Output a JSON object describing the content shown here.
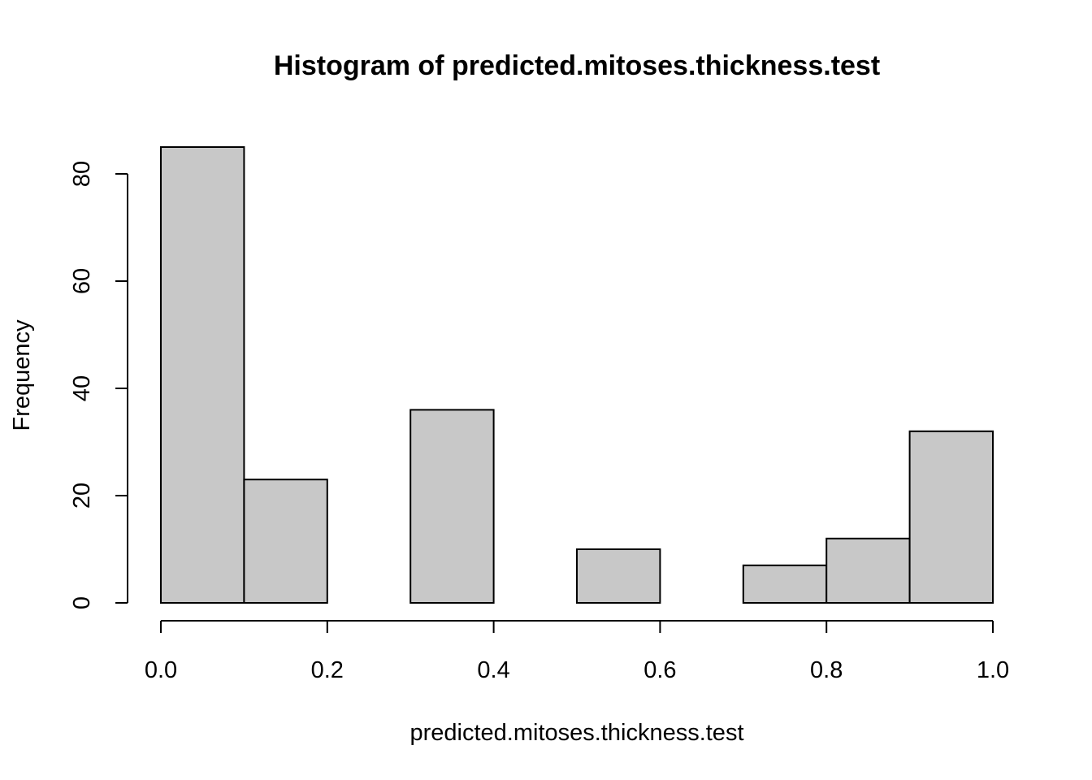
{
  "chart_data": {
    "type": "bar",
    "subtype": "histogram",
    "title": "Histogram of predicted.mitoses.thickness.test",
    "xlabel": "predicted.mitoses.thickness.test",
    "ylabel": "Frequency",
    "bins": [
      {
        "x0": 0.0,
        "x1": 0.1,
        "count": 85
      },
      {
        "x0": 0.1,
        "x1": 0.2,
        "count": 23
      },
      {
        "x0": 0.2,
        "x1": 0.3,
        "count": 0
      },
      {
        "x0": 0.3,
        "x1": 0.4,
        "count": 36
      },
      {
        "x0": 0.4,
        "x1": 0.5,
        "count": 0
      },
      {
        "x0": 0.5,
        "x1": 0.6,
        "count": 10
      },
      {
        "x0": 0.6,
        "x1": 0.7,
        "count": 0
      },
      {
        "x0": 0.7,
        "x1": 0.8,
        "count": 7
      },
      {
        "x0": 0.8,
        "x1": 0.9,
        "count": 12
      },
      {
        "x0": 0.9,
        "x1": 1.0,
        "count": 32
      }
    ],
    "xlim": [
      0.0,
      1.0
    ],
    "ylim": [
      0,
      85
    ],
    "xticks": [
      "0.0",
      "0.2",
      "0.4",
      "0.6",
      "0.8",
      "1.0"
    ],
    "yticks": [
      "0",
      "20",
      "40",
      "60",
      "80"
    ],
    "bar_color": "#c8c8c8",
    "grid": false,
    "legend": "none"
  }
}
